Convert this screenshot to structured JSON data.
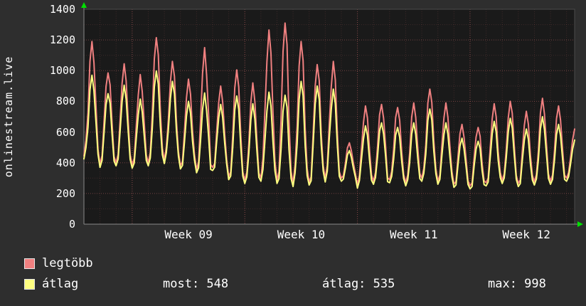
{
  "chart_data": {
    "type": "line",
    "title": "",
    "vertical_label": "onlinestream.live",
    "ylim": [
      0,
      1400
    ],
    "y_ticks": [
      0,
      200,
      400,
      600,
      800,
      1000,
      1200,
      1400
    ],
    "y_minor_step": 100,
    "days_shown": 30.5,
    "x_labels": [
      {
        "label": "Week 09",
        "day": 6.5
      },
      {
        "label": "Week 10",
        "day": 13.5
      },
      {
        "label": "Week 11",
        "day": 20.5
      },
      {
        "label": "Week 12",
        "day": 27.5
      }
    ],
    "week_start_days": [
      3,
      10,
      17,
      24
    ],
    "grid": true,
    "legend_position": "bottom",
    "series": [
      {
        "name": "legtöbb",
        "color": "#f08080",
        "peaks": [
          1190,
          985,
          1045,
          975,
          1215,
          1060,
          945,
          1150,
          900,
          1005,
          920,
          1265,
          1310,
          1190,
          1040,
          1060,
          530,
          770,
          780,
          760,
          790,
          880,
          790,
          650,
          630,
          785,
          800,
          735,
          820,
          770,
          620
        ],
        "troughs": [
          445,
          390,
          400,
          385,
          400,
          415,
          380,
          355,
          370,
          310,
          285,
          300,
          285,
          265,
          275,
          295,
          300,
          255,
          280,
          290,
          270,
          300,
          280,
          260,
          250,
          270,
          285,
          265,
          275,
          280,
          300
        ]
      },
      {
        "name": "átlag",
        "color": "#ffff80",
        "peaks": [
          970,
          850,
          905,
          815,
          998,
          930,
          800,
          855,
          780,
          835,
          785,
          860,
          840,
          930,
          900,
          880,
          480,
          640,
          660,
          630,
          660,
          750,
          660,
          560,
          540,
          670,
          690,
          620,
          700,
          650,
          548
        ],
        "troughs": [
          425,
          370,
          380,
          365,
          380,
          395,
          360,
          335,
          350,
          290,
          265,
          280,
          265,
          245,
          255,
          275,
          280,
          235,
          260,
          270,
          250,
          280,
          260,
          240,
          230,
          250,
          265,
          245,
          255,
          260,
          280
        ]
      }
    ],
    "stats": [
      "most: 548",
      "átlag: 535",
      "max: 998"
    ],
    "colors": {
      "bg": "#2e2e2e",
      "plot_bg": "#1a1a1a",
      "text": "#ffffff",
      "grid_minor": "rgba(220,110,110,0.18)",
      "grid_major": "rgba(220,110,110,0.45)",
      "frame": "#4a4a4a",
      "axis": "#8a8a8a",
      "arrow": "#00e000"
    }
  }
}
